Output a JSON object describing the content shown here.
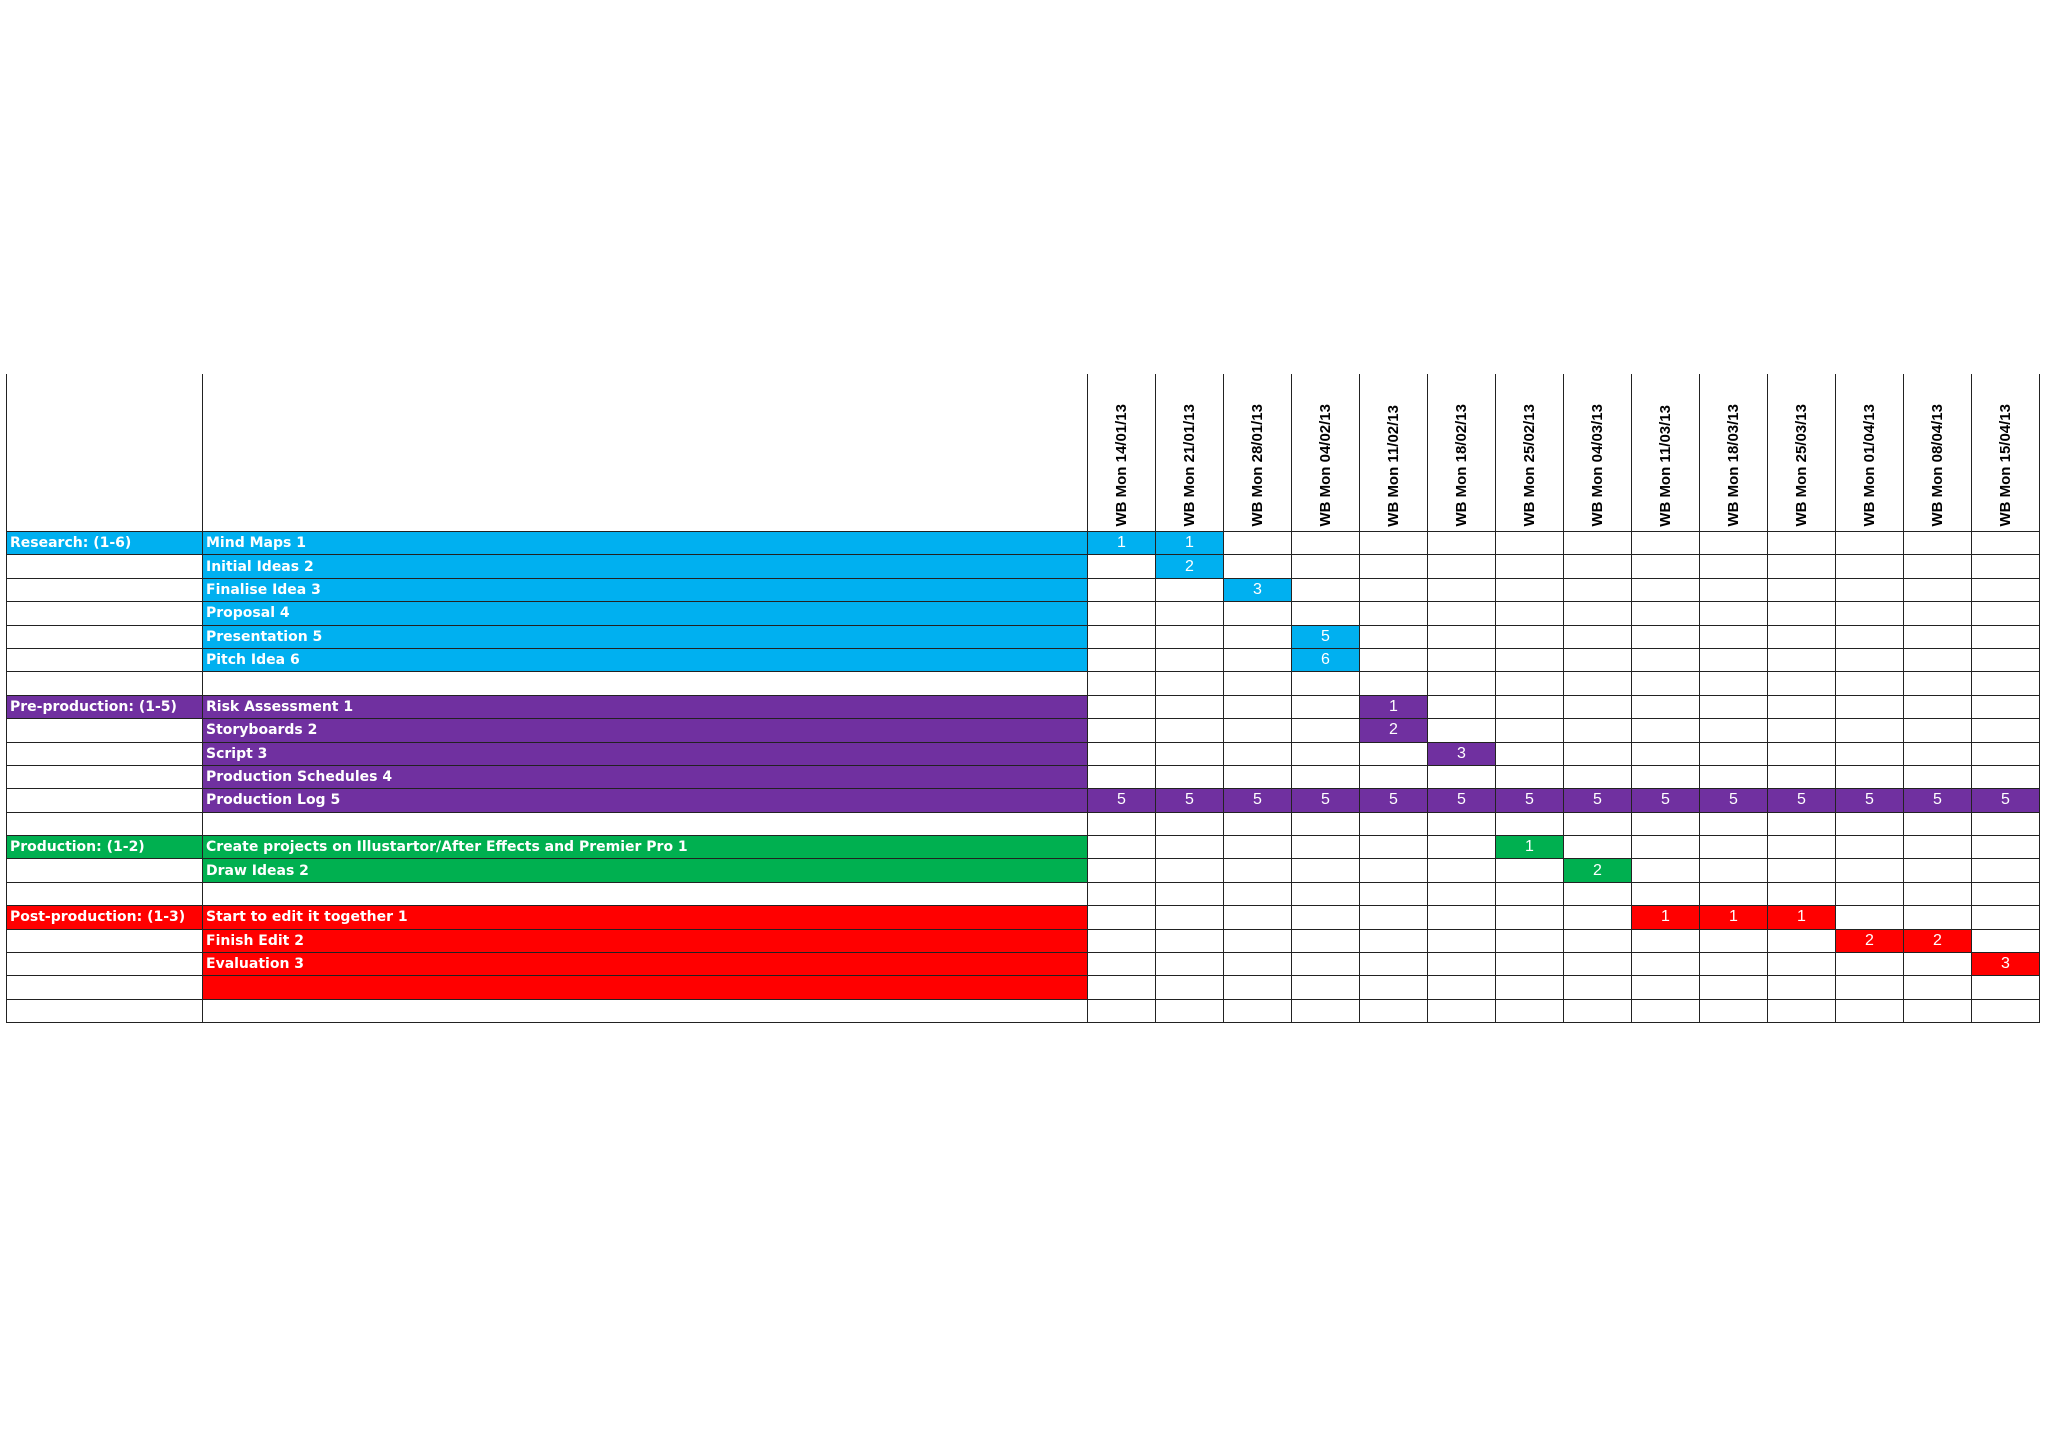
{
  "weeks": [
    "WB Mon 14/01/13",
    "WB Mon 21/01/13",
    "WB Mon 28/01/13",
    "WB Mon 04/02/13",
    "WB Mon 11/02/13",
    "WB Mon 18/02/13",
    "WB Mon 25/02/13",
    "WB Mon 04/03/13",
    "WB Mon 11/03/13",
    "WB Mon 18/03/13",
    "WB Mon 25/03/13",
    "WB Mon 01/04/13",
    "WB Mon 08/04/13",
    "WB Mon 15/04/13"
  ],
  "colors": {
    "research": "#00b0f0",
    "preproduction": "#7030a0",
    "production": "#00b050",
    "postproduction": "#ff0000"
  },
  "rows": [
    {
      "section": "Research: (1-6)",
      "task": "Mind Maps 1",
      "color": "research",
      "marks": {
        "0": "1",
        "1": "1"
      }
    },
    {
      "section": "",
      "task": "Initial Ideas 2",
      "color": "research",
      "marks": {
        "1": "2"
      }
    },
    {
      "section": "",
      "task": "Finalise Idea 3",
      "color": "research",
      "marks": {
        "2": "3"
      }
    },
    {
      "section": "",
      "task": "Proposal 4",
      "color": "research",
      "marks": {}
    },
    {
      "section": "",
      "task": "Presentation 5",
      "color": "research",
      "marks": {
        "3": "5"
      }
    },
    {
      "section": "",
      "task": "Pitch Idea 6",
      "color": "research",
      "marks": {
        "3": "6"
      }
    },
    {
      "section": "",
      "task": "",
      "color": "",
      "marks": {}
    },
    {
      "section": "Pre-production: (1-5)",
      "task": "Risk Assessment 1",
      "color": "preproduction",
      "marks": {
        "4": "1"
      }
    },
    {
      "section": "",
      "task": "Storyboards 2",
      "color": "preproduction",
      "marks": {
        "4": "2"
      }
    },
    {
      "section": "",
      "task": "Script 3",
      "color": "preproduction",
      "marks": {
        "5": "3"
      }
    },
    {
      "section": "",
      "task": "Production Schedules 4",
      "color": "preproduction",
      "marks": {}
    },
    {
      "section": "",
      "task": "Production Log 5",
      "color": "preproduction",
      "marks": {
        "0": "5",
        "1": "5",
        "2": "5",
        "3": "5",
        "4": "5",
        "5": "5",
        "6": "5",
        "7": "5",
        "8": "5",
        "9": "5",
        "10": "5",
        "11": "5",
        "12": "5",
        "13": "5"
      }
    },
    {
      "section": "",
      "task": "",
      "color": "",
      "marks": {}
    },
    {
      "section": "Production: (1-2)",
      "task": "Create projects on Illustartor/After Effects and Premier Pro  1",
      "color": "production",
      "marks": {
        "6": "1"
      }
    },
    {
      "section": "",
      "task": "Draw Ideas 2",
      "color": "production",
      "marks": {
        "7": "2"
      }
    },
    {
      "section": "",
      "task": "",
      "color": "",
      "marks": {}
    },
    {
      "section": "Post-production: (1-3)",
      "task": "Start to edit it together 1",
      "color": "postproduction",
      "marks": {
        "8": "1",
        "9": "1",
        "10": "1"
      }
    },
    {
      "section": "",
      "task": "Finish Edit 2",
      "color": "postproduction",
      "marks": {
        "11": "2",
        "12": "2"
      }
    },
    {
      "section": "",
      "task": "Evaluation 3",
      "color": "postproduction",
      "marks": {
        "13": "3"
      }
    },
    {
      "section": "",
      "task": "",
      "color": "postproduction",
      "marks": {}
    },
    {
      "section": "",
      "task": "",
      "color": "",
      "marks": {}
    }
  ]
}
